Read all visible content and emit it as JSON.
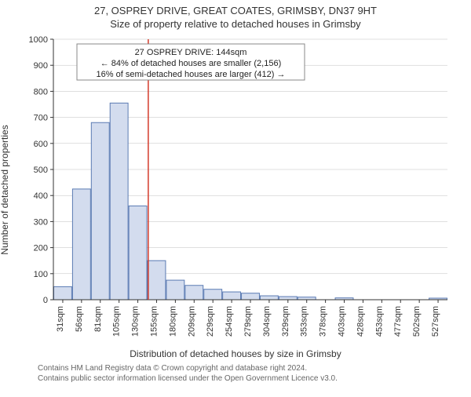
{
  "title_main": "27, OSPREY DRIVE, GREAT COATES, GRIMSBY, DN37 9HT",
  "title_sub": "Size of property relative to detached houses in Grimsby",
  "ylabel": "Number of detached properties",
  "xlabel": "Distribution of detached houses by size in Grimsby",
  "footer_line1": "Contains HM Land Registry data © Crown copyright and database right 2024.",
  "footer_line2": "Contains public sector information licensed under the Open Government Licence v3.0.",
  "annotation": {
    "line1": "27 OSPREY DRIVE: 144sqm",
    "line2": "← 84% of detached houses are smaller (2,156)",
    "line3": "16% of semi-detached houses are larger (412) →"
  },
  "chart": {
    "type": "histogram",
    "background_color": "#ffffff",
    "bar_fill": "#d3dcee",
    "bar_stroke": "#5b7bb3",
    "bar_stroke_width": 1,
    "marker_line_color": "#d43a2a",
    "marker_line_width": 1.5,
    "marker_x_value": 144,
    "axis_color": "#333333",
    "grid_color": "#bfbfbf",
    "ylim": [
      0,
      1000
    ],
    "ytick_step": 100,
    "xtick_labels_suffix": "sqm",
    "xtick_values": [
      31,
      56,
      81,
      105,
      130,
      155,
      180,
      209,
      229,
      254,
      279,
      304,
      329,
      353,
      378,
      403,
      428,
      453,
      477,
      502,
      527
    ],
    "categories": [
      31,
      56,
      81,
      105,
      130,
      155,
      180,
      209,
      229,
      254,
      279,
      304,
      329,
      353,
      378,
      403,
      428,
      453,
      477,
      502,
      527
    ],
    "values": [
      50,
      425,
      680,
      755,
      360,
      150,
      75,
      55,
      40,
      30,
      25,
      15,
      12,
      10,
      0,
      7,
      0,
      0,
      0,
      0,
      6
    ],
    "title_fontsize": 13,
    "label_fontsize": 12,
    "tick_fontsize": 11
  }
}
